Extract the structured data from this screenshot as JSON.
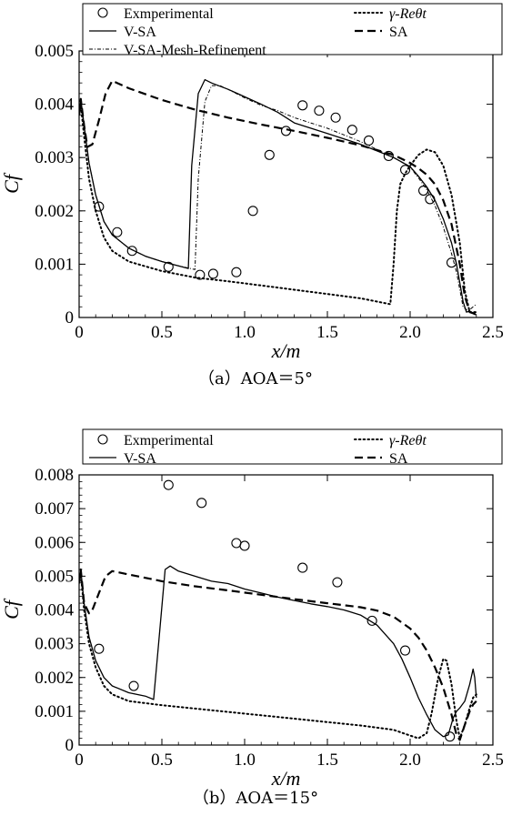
{
  "chart_data": [
    {
      "type": "line",
      "caption": "（a）AOA＝5°",
      "xlabel": "x/m",
      "ylabel": "Cf",
      "xlim": [
        0,
        2.5
      ],
      "ylim": [
        0,
        0.005
      ],
      "x_ticks": [
        "0",
        "0.5",
        "1.0",
        "1.5",
        "2.0",
        "2.5"
      ],
      "y_ticks": [
        "0",
        "0.001",
        "0.002",
        "0.003",
        "0.004",
        "0.005"
      ],
      "legend": [
        {
          "key": "exp",
          "label": "Exmperimental",
          "col": 0,
          "row": 0
        },
        {
          "key": "gamma",
          "label": "γ-Reθt",
          "col": 1,
          "row": 0
        },
        {
          "key": "vsa",
          "label": "V-SA",
          "col": 0,
          "row": 1
        },
        {
          "key": "sa",
          "label": "SA",
          "col": 1,
          "row": 1
        },
        {
          "key": "vsamr",
          "label": "V-SA-Mesh-Refinement",
          "col": 0,
          "row": 2
        }
      ],
      "series": [
        {
          "name": "Exmperimental",
          "key": "exp",
          "style": "marker",
          "x": [
            0.12,
            0.23,
            0.32,
            0.54,
            0.73,
            0.81,
            0.95,
            1.05,
            1.15,
            1.25,
            1.35,
            1.45,
            1.55,
            1.65,
            1.75,
            1.87,
            1.97,
            2.08,
            2.12,
            2.25
          ],
          "y": [
            0.00208,
            0.0016,
            0.00125,
            0.00095,
            0.0008,
            0.00082,
            0.00085,
            0.002,
            0.00305,
            0.0035,
            0.00398,
            0.00388,
            0.00375,
            0.00352,
            0.00332,
            0.00303,
            0.00277,
            0.00238,
            0.00222,
            0.00103
          ]
        },
        {
          "name": "V-SA",
          "key": "vsa",
          "style": "solid",
          "x": [
            0,
            0.01,
            0.03,
            0.06,
            0.1,
            0.15,
            0.2,
            0.3,
            0.4,
            0.5,
            0.6,
            0.66,
            0.68,
            0.72,
            0.76,
            0.8,
            0.9,
            1.0,
            1.1,
            1.2,
            1.3,
            1.5,
            1.7,
            1.9,
            2.0,
            2.05,
            2.1,
            2.15,
            2.2,
            2.25,
            2.28,
            2.32,
            2.34,
            2.36,
            2.38,
            2.4
          ],
          "y": [
            0.0038,
            0.0041,
            0.0036,
            0.0029,
            0.0023,
            0.0018,
            0.00155,
            0.0013,
            0.00115,
            0.00105,
            0.00097,
            0.00092,
            0.00285,
            0.0042,
            0.00446,
            0.0044,
            0.00428,
            0.00414,
            0.004,
            0.00385,
            0.00365,
            0.00345,
            0.00325,
            0.003,
            0.00283,
            0.00265,
            0.00245,
            0.0022,
            0.00185,
            0.0014,
            0.001,
            0.0003,
            0.0001,
            0.00012,
            8e-05,
            5e-05
          ]
        },
        {
          "name": "V-SA-Mesh-Refinement",
          "key": "vsamr",
          "style": "dashdot",
          "x": [
            0,
            0.01,
            0.03,
            0.06,
            0.1,
            0.15,
            0.2,
            0.3,
            0.4,
            0.5,
            0.6,
            0.7,
            0.72,
            0.76,
            0.8,
            0.85,
            0.9,
            1.0,
            1.1,
            1.2,
            1.3,
            1.5,
            1.7,
            1.9,
            2.0,
            2.05,
            2.1,
            2.15,
            2.2,
            2.25,
            2.28,
            2.32,
            2.35,
            2.38,
            2.4
          ],
          "y": [
            0.0038,
            0.0041,
            0.0036,
            0.0029,
            0.0023,
            0.0018,
            0.00155,
            0.0013,
            0.00115,
            0.00105,
            0.00097,
            0.0009,
            0.0026,
            0.00405,
            0.00435,
            0.00435,
            0.00428,
            0.00412,
            0.00398,
            0.00388,
            0.00375,
            0.00355,
            0.0033,
            0.003,
            0.00282,
            0.00262,
            0.0024,
            0.0021,
            0.0017,
            0.0012,
            0.00085,
            0.0002,
            0.00012,
            0.0002,
            0.00025
          ]
        },
        {
          "name": "γ-Reθt",
          "key": "gamma",
          "style": "dotted",
          "x": [
            0,
            0.01,
            0.03,
            0.06,
            0.1,
            0.15,
            0.2,
            0.3,
            0.5,
            0.7,
            0.9,
            1.1,
            1.3,
            1.5,
            1.7,
            1.88,
            1.9,
            1.92,
            1.94,
            1.97,
            2.0,
            2.05,
            2.1,
            2.15,
            2.2,
            2.25,
            2.3,
            2.33,
            2.36,
            2.38,
            2.4
          ],
          "y": [
            0.0038,
            0.004,
            0.0034,
            0.0026,
            0.002,
            0.0015,
            0.00125,
            0.00105,
            0.00087,
            0.00075,
            0.00068,
            0.0006,
            0.00052,
            0.00044,
            0.00036,
            0.00025,
            0.001,
            0.002,
            0.0025,
            0.0027,
            0.00285,
            0.00305,
            0.00315,
            0.0031,
            0.00285,
            0.0023,
            0.0014,
            0.0005,
            0.0001,
            0.0001,
            0.0001
          ]
        },
        {
          "name": "SA",
          "key": "sa",
          "style": "dashed",
          "x": [
            0,
            0.01,
            0.03,
            0.05,
            0.08,
            0.12,
            0.16,
            0.2,
            0.3,
            0.5,
            0.7,
            0.9,
            1.1,
            1.3,
            1.5,
            1.7,
            1.9,
            2.0,
            2.05,
            2.1,
            2.15,
            2.2,
            2.25,
            2.3,
            2.33,
            2.36,
            2.38,
            2.4
          ],
          "y": [
            0.0038,
            0.0041,
            0.0036,
            0.0032,
            0.00325,
            0.0037,
            0.0042,
            0.00444,
            0.0043,
            0.00408,
            0.0039,
            0.00375,
            0.00362,
            0.0035,
            0.00337,
            0.00323,
            0.00305,
            0.0029,
            0.0028,
            0.00268,
            0.0025,
            0.0022,
            0.00175,
            0.001,
            0.0004,
            0.0001,
            8e-05,
            5e-05
          ]
        }
      ]
    },
    {
      "type": "line",
      "caption": "（b）AOA＝15°",
      "xlabel": "x/m",
      "ylabel": "Cf",
      "xlim": [
        0,
        2.5
      ],
      "ylim": [
        0,
        0.008
      ],
      "x_ticks": [
        "0",
        "0.5",
        "1.0",
        "1.5",
        "2.0",
        "2.5"
      ],
      "y_ticks": [
        "0",
        "0.001",
        "0.002",
        "0.003",
        "0.004",
        "0.005",
        "0.006",
        "0.007",
        "0.008"
      ],
      "legend": [
        {
          "key": "exp",
          "label": "Exmperimental",
          "col": 0,
          "row": 0
        },
        {
          "key": "gamma",
          "label": "γ-Reθt",
          "col": 1,
          "row": 0
        },
        {
          "key": "vsa",
          "label": "V-SA",
          "col": 0,
          "row": 1
        },
        {
          "key": "sa",
          "label": "SA",
          "col": 1,
          "row": 1
        }
      ],
      "series": [
        {
          "name": "Exmperimental",
          "key": "exp",
          "style": "marker",
          "x": [
            0.12,
            0.33,
            0.54,
            0.74,
            0.95,
            1.0,
            1.35,
            1.56,
            1.77,
            1.97,
            2.24
          ],
          "y": [
            0.00285,
            0.00175,
            0.0077,
            0.00717,
            0.00598,
            0.0059,
            0.00525,
            0.00482,
            0.00368,
            0.0028,
            0.00025
          ]
        },
        {
          "name": "V-SA",
          "key": "vsa",
          "style": "solid",
          "x": [
            0,
            0.01,
            0.03,
            0.06,
            0.1,
            0.15,
            0.2,
            0.3,
            0.4,
            0.45,
            0.48,
            0.52,
            0.55,
            0.6,
            0.7,
            0.8,
            0.9,
            1.0,
            1.1,
            1.2,
            1.3,
            1.4,
            1.5,
            1.6,
            1.7,
            1.8,
            1.9,
            1.95,
            2.0,
            2.05,
            2.1,
            2.15,
            2.2,
            2.23,
            2.26,
            2.28,
            2.3,
            2.33,
            2.36,
            2.38,
            2.39,
            2.4
          ],
          "y": [
            0.0048,
            0.0052,
            0.0042,
            0.0032,
            0.0025,
            0.002,
            0.00175,
            0.00155,
            0.00145,
            0.00135,
            0.003,
            0.0052,
            0.0053,
            0.00515,
            0.005,
            0.00485,
            0.00478,
            0.00462,
            0.0045,
            0.00438,
            0.00428,
            0.00418,
            0.0041,
            0.004,
            0.00385,
            0.00355,
            0.003,
            0.00255,
            0.002,
            0.0014,
            0.0009,
            0.00045,
            0.00025,
            0.0003,
            0.0008,
            0.001,
            0.0011,
            0.0013,
            0.0018,
            0.00225,
            0.002,
            0.0014
          ]
        },
        {
          "name": "γ-Reθt",
          "key": "gamma",
          "style": "dotted",
          "x": [
            0,
            0.01,
            0.03,
            0.06,
            0.1,
            0.15,
            0.2,
            0.3,
            0.5,
            0.7,
            0.9,
            1.1,
            1.3,
            1.5,
            1.7,
            1.9,
            2.0,
            2.05,
            2.1,
            2.13,
            2.17,
            2.2,
            2.22,
            2.25,
            2.28,
            2.3,
            2.33,
            2.36,
            2.38,
            2.4
          ],
          "y": [
            0.0048,
            0.0051,
            0.004,
            0.003,
            0.0023,
            0.00175,
            0.0015,
            0.0013,
            0.00118,
            0.00108,
            0.00098,
            0.00088,
            0.00078,
            0.00068,
            0.00058,
            0.00045,
            0.00028,
            0.0002,
            0.00035,
            0.00095,
            0.002,
            0.00255,
            0.0025,
            0.0018,
            0.0007,
            0.0002,
            0.0006,
            0.0011,
            0.0014,
            0.0015
          ]
        },
        {
          "name": "SA",
          "key": "sa",
          "style": "dashed",
          "x": [
            0,
            0.01,
            0.03,
            0.06,
            0.08,
            0.12,
            0.16,
            0.2,
            0.3,
            0.5,
            0.7,
            0.9,
            1.1,
            1.3,
            1.5,
            1.7,
            1.8,
            1.9,
            2.0,
            2.05,
            2.1,
            2.15,
            2.2,
            2.25,
            2.28,
            2.3,
            2.33,
            2.36,
            2.38,
            2.4
          ],
          "y": [
            0.0048,
            0.0052,
            0.0042,
            0.0039,
            0.004,
            0.0045,
            0.005,
            0.00515,
            0.00505,
            0.00485,
            0.0047,
            0.00458,
            0.00445,
            0.00432,
            0.0042,
            0.00408,
            0.00398,
            0.0038,
            0.00345,
            0.00318,
            0.0028,
            0.0023,
            0.0017,
            0.0009,
            0.0003,
            0.00015,
            0.0006,
            0.001,
            0.0012,
            0.0013
          ]
        }
      ]
    }
  ]
}
